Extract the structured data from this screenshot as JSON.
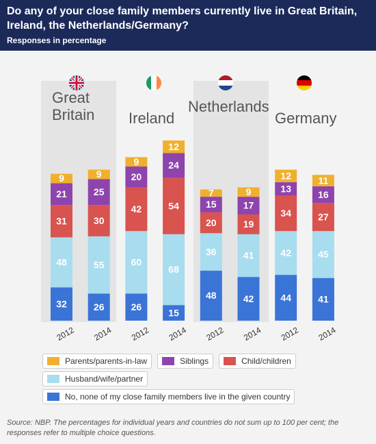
{
  "chart_data": {
    "type": "bar",
    "stacked": true,
    "title": "Do any of your close family members currently live in Great Britain, Ireland, the Netherlands/Germany?",
    "subtitle": "Responses in percentage",
    "groups": [
      "Great Britain",
      "Ireland",
      "Netherlands",
      "Germany"
    ],
    "categories": [
      "2012",
      "2014",
      "2012",
      "2014",
      "2012",
      "2014",
      "2012",
      "2014"
    ],
    "series": [
      {
        "name": "Parents/parents-in-law",
        "color": "#f0b02e",
        "values": [
          9,
          9,
          9,
          12,
          7,
          9,
          12,
          11
        ]
      },
      {
        "name": "Siblings",
        "color": "#8e44ad",
        "values": [
          21,
          25,
          20,
          24,
          15,
          17,
          13,
          16
        ]
      },
      {
        "name": "Child/children",
        "color": "#d9534f",
        "values": [
          31,
          30,
          42,
          54,
          20,
          19,
          34,
          27
        ]
      },
      {
        "name": "Husband/wife/partner",
        "color": "#a8dcef",
        "values": [
          48,
          55,
          60,
          68,
          36,
          41,
          42,
          45
        ]
      },
      {
        "name": "No, none of my close family members live in the given country",
        "color": "#3a74d6",
        "values": [
          32,
          26,
          26,
          15,
          48,
          42,
          44,
          41
        ]
      }
    ],
    "source": "Source: NBP. The percentages for individual years and countries do not sum up to 100 per cent; the responses refer to multiple choice questions."
  }
}
